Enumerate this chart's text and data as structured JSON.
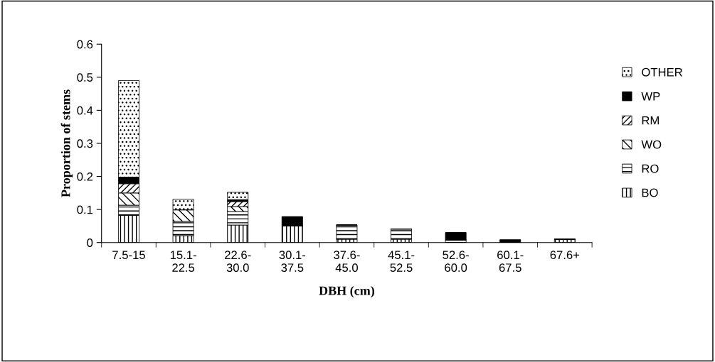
{
  "chart_data": {
    "type": "bar",
    "stacked": true,
    "xlabel": "DBH (cm)",
    "ylabel": "Proportion of stems",
    "categories": [
      "7.5-15",
      "15.1-\n22.5",
      "22.6-\n30.0",
      "30.1-\n37.5",
      "37.6-\n45.0",
      "45.1-\n52.5",
      "52.6-\n60.0",
      "60.1-\n67.5",
      "67.6+"
    ],
    "series": [
      {
        "name": "BO",
        "color": "#000000",
        "values": [
          0.082,
          0.021,
          0.053,
          0.051,
          0.01,
          0.01,
          0,
          0,
          0.01
        ]
      },
      {
        "name": "RO",
        "color": "#000000",
        "values": [
          0.031,
          0.043,
          0.041,
          0,
          0.043,
          0.031,
          0.008,
          0,
          0
        ]
      },
      {
        "name": "WO",
        "color": "#000000",
        "values": [
          0.037,
          0.035,
          0.015,
          0,
          0,
          0,
          0,
          0,
          0
        ]
      },
      {
        "name": "RM",
        "color": "#000000",
        "values": [
          0.028,
          0,
          0.015,
          0,
          0,
          0,
          0,
          0,
          0
        ]
      },
      {
        "name": "WP",
        "color": "#000000",
        "values": [
          0.02,
          0,
          0.006,
          0.027,
          0,
          0,
          0.022,
          0.008,
          0
        ]
      },
      {
        "name": "OTHER",
        "color": "#000000",
        "values": [
          0.292,
          0.032,
          0.022,
          0,
          0,
          0,
          0,
          0,
          0
        ]
      }
    ],
    "ylim": [
      0,
      0.6
    ],
    "yticks": [
      0,
      0.1,
      0.2,
      0.3,
      0.4,
      0.5,
      0.6
    ],
    "grid": false,
    "legend": "right"
  }
}
